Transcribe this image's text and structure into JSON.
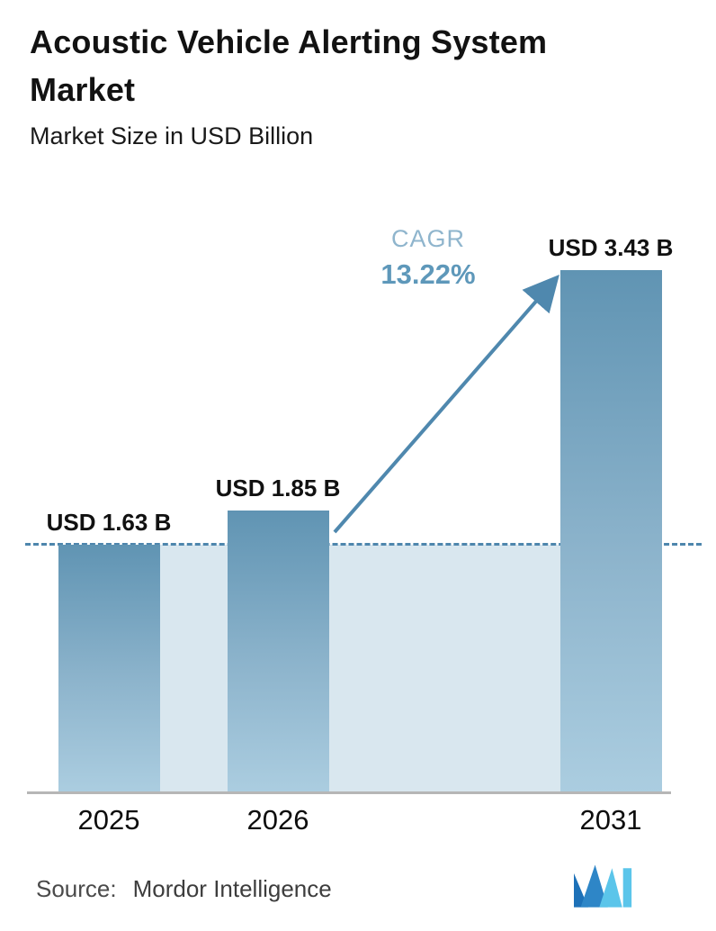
{
  "header": {
    "title_line1": "Acoustic Vehicle Alerting System",
    "title_line2": "Market",
    "subtitle": "Market Size in USD Billion"
  },
  "chart_data": {
    "type": "bar",
    "title": "Acoustic Vehicle Alerting System Market",
    "subtitle": "Market Size in USD Billion",
    "categories": [
      "2025",
      "2026",
      "2031"
    ],
    "values": [
      1.63,
      1.85,
      3.43
    ],
    "bar_labels": [
      "USD 1.63 B",
      "USD 1.85 B",
      "USD 3.43 B"
    ],
    "unit": "USD Billion",
    "ylim": [
      0,
      4
    ],
    "grid": false,
    "legend": "none",
    "baseline_reference_value": 1.63,
    "annotations": {
      "cagr_label": "CAGR",
      "cagr_value": "13.22%",
      "arrow": "from 2026 bar top to 2031 bar top"
    },
    "colors": {
      "bar_gradient_top": "#6094b3",
      "bar_gradient_bottom": "#abcde0",
      "baseline_band": "#d9e7ef",
      "dashed_line": "#4e86ad",
      "arrow": "#4f88ae",
      "cagr_label_text": "#8fb5cd",
      "cagr_value_text": "#5e98ba",
      "axis_line": "#b6b6b6"
    }
  },
  "footer": {
    "source_label": "Source:",
    "source_value": "Mordor Intelligence",
    "logo": "mordor-intelligence-logo"
  }
}
